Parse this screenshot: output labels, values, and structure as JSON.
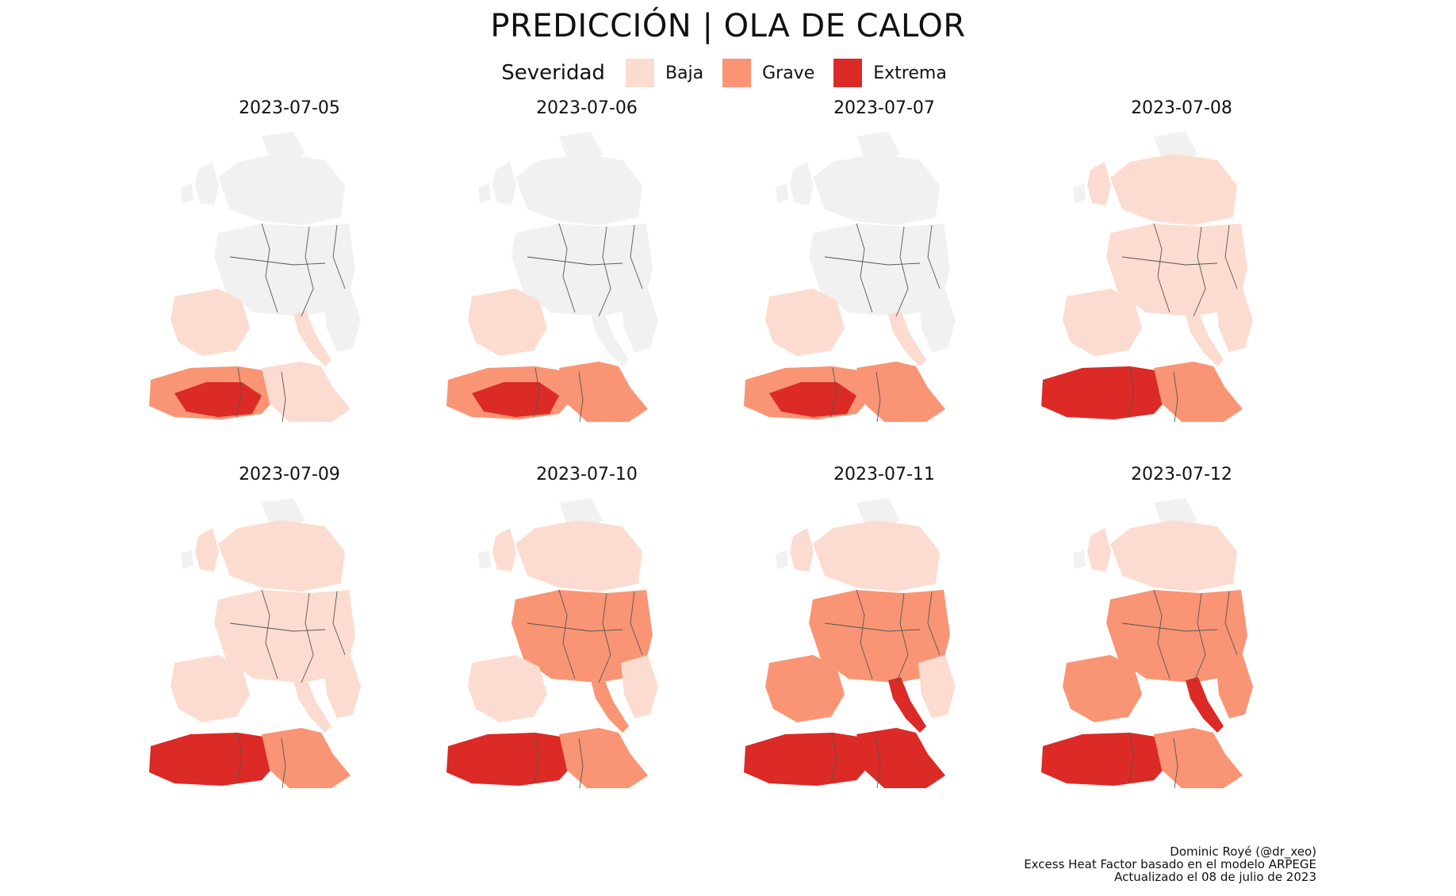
{
  "title": "PREDICCIÓN | OLA DE CALOR",
  "legend": {
    "title": "Severidad",
    "items": [
      {
        "label": "Baja",
        "color": "#fcdcd0"
      },
      {
        "label": "Grave",
        "color": "#f99574"
      },
      {
        "label": "Extrema",
        "color": "#dc2a26"
      }
    ]
  },
  "colors": {
    "land": "#f1f1f1",
    "border": "#555555",
    "sea": "#ffffff"
  },
  "panels": [
    {
      "date": "2023-07-05",
      "levels": {
        "europe_north": 0,
        "europe_central": 0,
        "iberia": 1,
        "italy": 1,
        "balkans": 0,
        "north_africa_west": 2,
        "north_africa_east": 1,
        "sahara_core": 3
      }
    },
    {
      "date": "2023-07-06",
      "levels": {
        "europe_north": 0,
        "europe_central": 0,
        "iberia": 1,
        "italy": 0,
        "balkans": 0,
        "north_africa_west": 2,
        "north_africa_east": 2,
        "sahara_core": 3
      }
    },
    {
      "date": "2023-07-07",
      "levels": {
        "europe_north": 0,
        "europe_central": 0,
        "iberia": 1,
        "italy": 1,
        "balkans": 0,
        "north_africa_west": 2,
        "north_africa_east": 2,
        "sahara_core": 3
      }
    },
    {
      "date": "2023-07-08",
      "levels": {
        "europe_north": 1,
        "europe_central": 1,
        "iberia": 1,
        "italy": 1,
        "balkans": 1,
        "north_africa_west": 3,
        "north_africa_east": 2,
        "sahara_core": 3
      }
    },
    {
      "date": "2023-07-09",
      "levels": {
        "europe_north": 1,
        "europe_central": 1,
        "iberia": 1,
        "italy": 1,
        "balkans": 1,
        "north_africa_west": 3,
        "north_africa_east": 2,
        "sahara_core": 3
      }
    },
    {
      "date": "2023-07-10",
      "levels": {
        "europe_north": 1,
        "europe_central": 2,
        "iberia": 1,
        "italy": 2,
        "balkans": 1,
        "north_africa_west": 3,
        "north_africa_east": 2,
        "sahara_core": 3
      }
    },
    {
      "date": "2023-07-11",
      "levels": {
        "europe_north": 1,
        "europe_central": 2,
        "iberia": 2,
        "italy": 3,
        "balkans": 1,
        "north_africa_west": 3,
        "north_africa_east": 3,
        "sahara_core": 3
      }
    },
    {
      "date": "2023-07-12",
      "levels": {
        "europe_north": 1,
        "europe_central": 2,
        "iberia": 2,
        "italy": 3,
        "balkans": 2,
        "north_africa_west": 3,
        "north_africa_east": 2,
        "sahara_core": 3
      }
    }
  ],
  "caption": [
    "Dominic Royé (@dr_xeo)",
    "Excess Heat Factor basado en el modelo ARPEGE",
    "Actualizado el 08 de julio de 2023"
  ]
}
